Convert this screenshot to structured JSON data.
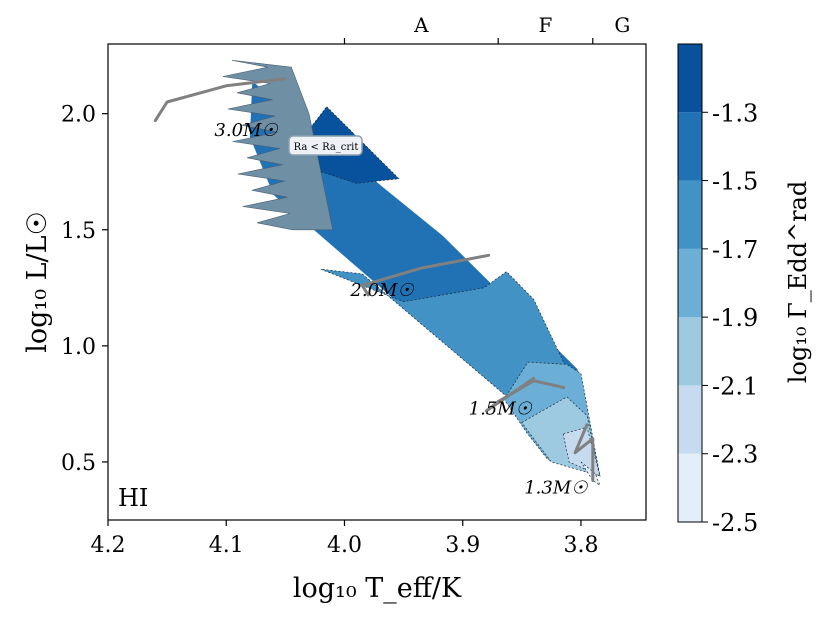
{
  "chart_data": {
    "type": "contour",
    "panel_label": "HI",
    "xlabel": "log₁₀ T_eff/K",
    "ylabel": "log₁₀ L/L☉",
    "x_inverted": true,
    "xlim": [
      4.2,
      3.745
    ],
    "ylim": [
      0.25,
      2.3
    ],
    "x_ticks": [
      4.2,
      4.1,
      4.0,
      3.9,
      3.8
    ],
    "x_tick_labels": [
      "4.2",
      "4.1",
      "4.0",
      "3.9",
      "3.8"
    ],
    "y_ticks": [
      0.5,
      1.0,
      1.5,
      2.0
    ],
    "y_tick_labels": [
      "0.5",
      "1.0",
      "1.5",
      "2.0"
    ],
    "top_axis": {
      "labels": [
        "A",
        "F",
        "G"
      ],
      "label_positions_x": [
        3.935,
        3.83,
        3.765
      ],
      "boundaries_x": [
        4.0,
        3.87,
        3.79
      ]
    },
    "colorbar": {
      "label": "log₁₀ Γ_Edd^rad",
      "levels": [
        -2.5,
        -2.3,
        -2.1,
        -1.9,
        -1.7,
        -1.5,
        -1.3
      ],
      "tick_labels": [
        "-2.5",
        "-2.3",
        "-2.1",
        "-1.9",
        "-1.7",
        "-1.5",
        "-1.3"
      ],
      "colors": [
        "#e3eef9",
        "#c6dbef",
        "#9ecae1",
        "#6baed6",
        "#4292c6",
        "#2171b5",
        "#08519c"
      ]
    },
    "regions": [
      {
        "level_index": 5,
        "color": "#2171b5",
        "points": [
          [
            4.078,
            2.14
          ],
          [
            3.917,
            1.475
          ],
          [
            3.803,
            0.9
          ],
          [
            3.784,
            0.44
          ],
          [
            3.874,
            0.83
          ],
          [
            4.06,
            1.65
          ],
          [
            4.08,
            1.9
          ]
        ]
      },
      {
        "level_index": 4,
        "color": "#4292c6",
        "points": [
          [
            4.02,
            1.33
          ],
          [
            3.95,
            1.19
          ],
          [
            3.882,
            1.25
          ],
          [
            3.863,
            1.32
          ],
          [
            3.84,
            1.2
          ],
          [
            3.81,
            0.88
          ],
          [
            3.784,
            0.44
          ],
          [
            3.874,
            0.83
          ],
          [
            3.985,
            1.31
          ]
        ]
      },
      {
        "level_index": 3,
        "color": "#6baed6",
        "points": [
          [
            3.865,
            0.77
          ],
          [
            3.845,
            0.93
          ],
          [
            3.812,
            0.92
          ],
          [
            3.8,
            0.88
          ],
          [
            3.784,
            0.44
          ],
          [
            3.828,
            0.51
          ],
          [
            3.845,
            0.62
          ]
        ]
      },
      {
        "level_index": 2,
        "color": "#9ecae1",
        "points": [
          [
            3.85,
            0.67
          ],
          [
            3.812,
            0.78
          ],
          [
            3.795,
            0.7
          ],
          [
            3.784,
            0.44
          ],
          [
            3.825,
            0.5
          ],
          [
            3.84,
            0.6
          ]
        ]
      },
      {
        "level_index": 1,
        "color": "#c6dbef",
        "points": [
          [
            3.815,
            0.62
          ],
          [
            3.795,
            0.65
          ],
          [
            3.784,
            0.44
          ],
          [
            3.81,
            0.5
          ]
        ]
      },
      {
        "level_index": 6,
        "color": "#08519c",
        "points": [
          [
            4.015,
            2.03
          ],
          [
            3.954,
            1.72
          ],
          [
            3.99,
            1.7
          ],
          [
            4.05,
            1.8
          ]
        ]
      },
      {
        "level_index": 0,
        "color": "#e3eef9",
        "points": [
          [
            3.8,
            0.5
          ],
          [
            3.788,
            0.45
          ],
          [
            3.784,
            0.4
          ],
          [
            3.79,
            0.42
          ]
        ]
      }
    ],
    "critical_region": {
      "label": "Ra < Ra_crit",
      "label_position": [
        4.015,
        1.88
      ],
      "color": "#6f8fa5"
    },
    "tracks": [
      {
        "label": "3.0M☉",
        "label_position": [
          4.11,
          1.93
        ],
        "points": [
          [
            4.05,
            2.15
          ],
          [
            4.1,
            2.12
          ],
          [
            4.15,
            2.05
          ],
          [
            4.16,
            1.97
          ]
        ]
      },
      {
        "label": "2.0M☉",
        "label_position": [
          3.995,
          1.24
        ],
        "points": [
          [
            3.878,
            1.39
          ],
          [
            3.935,
            1.335
          ],
          [
            3.985,
            1.26
          ],
          [
            3.98,
            1.22
          ]
        ]
      },
      {
        "label": "1.5M☉",
        "label_position": [
          3.895,
          0.73
        ],
        "points": [
          [
            3.8145,
            0.82
          ],
          [
            3.84,
            0.85
          ],
          [
            3.87,
            0.76
          ],
          [
            3.88,
            0.72
          ],
          [
            3.84,
            0.86
          ]
        ]
      },
      {
        "label": "1.3M☉",
        "label_position": [
          3.848,
          0.39
        ],
        "points": [
          [
            3.795,
            0.66
          ],
          [
            3.805,
            0.54
          ],
          [
            3.79,
            0.6
          ],
          [
            3.79,
            0.42
          ]
        ]
      }
    ]
  }
}
